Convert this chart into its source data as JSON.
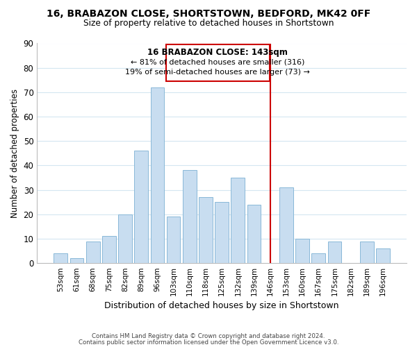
{
  "title": "16, BRABAZON CLOSE, SHORTSTOWN, BEDFORD, MK42 0FF",
  "subtitle": "Size of property relative to detached houses in Shortstown",
  "xlabel": "Distribution of detached houses by size in Shortstown",
  "ylabel": "Number of detached properties",
  "footer_line1": "Contains HM Land Registry data © Crown copyright and database right 2024.",
  "footer_line2": "Contains public sector information licensed under the Open Government Licence v3.0.",
  "categories": [
    "53sqm",
    "61sqm",
    "68sqm",
    "75sqm",
    "82sqm",
    "89sqm",
    "96sqm",
    "103sqm",
    "110sqm",
    "118sqm",
    "125sqm",
    "132sqm",
    "139sqm",
    "146sqm",
    "153sqm",
    "160sqm",
    "167sqm",
    "175sqm",
    "182sqm",
    "189sqm",
    "196sqm"
  ],
  "values": [
    4,
    2,
    9,
    11,
    20,
    46,
    72,
    19,
    38,
    27,
    25,
    35,
    24,
    0,
    31,
    10,
    4,
    9,
    0,
    9,
    6
  ],
  "bar_color": "#c8ddf0",
  "bar_edge_color": "#89b8d8",
  "ylim": [
    0,
    90
  ],
  "yticks": [
    0,
    10,
    20,
    30,
    40,
    50,
    60,
    70,
    80,
    90
  ],
  "annotation_title": "16 BRABAZON CLOSE: 143sqm",
  "annotation_line1": "← 81% of detached houses are smaller (316)",
  "annotation_line2": "19% of semi-detached houses are larger (73) →",
  "ref_line_color": "#cc0000",
  "grid_color": "#d4e6f1",
  "background_color": "#ffffff"
}
